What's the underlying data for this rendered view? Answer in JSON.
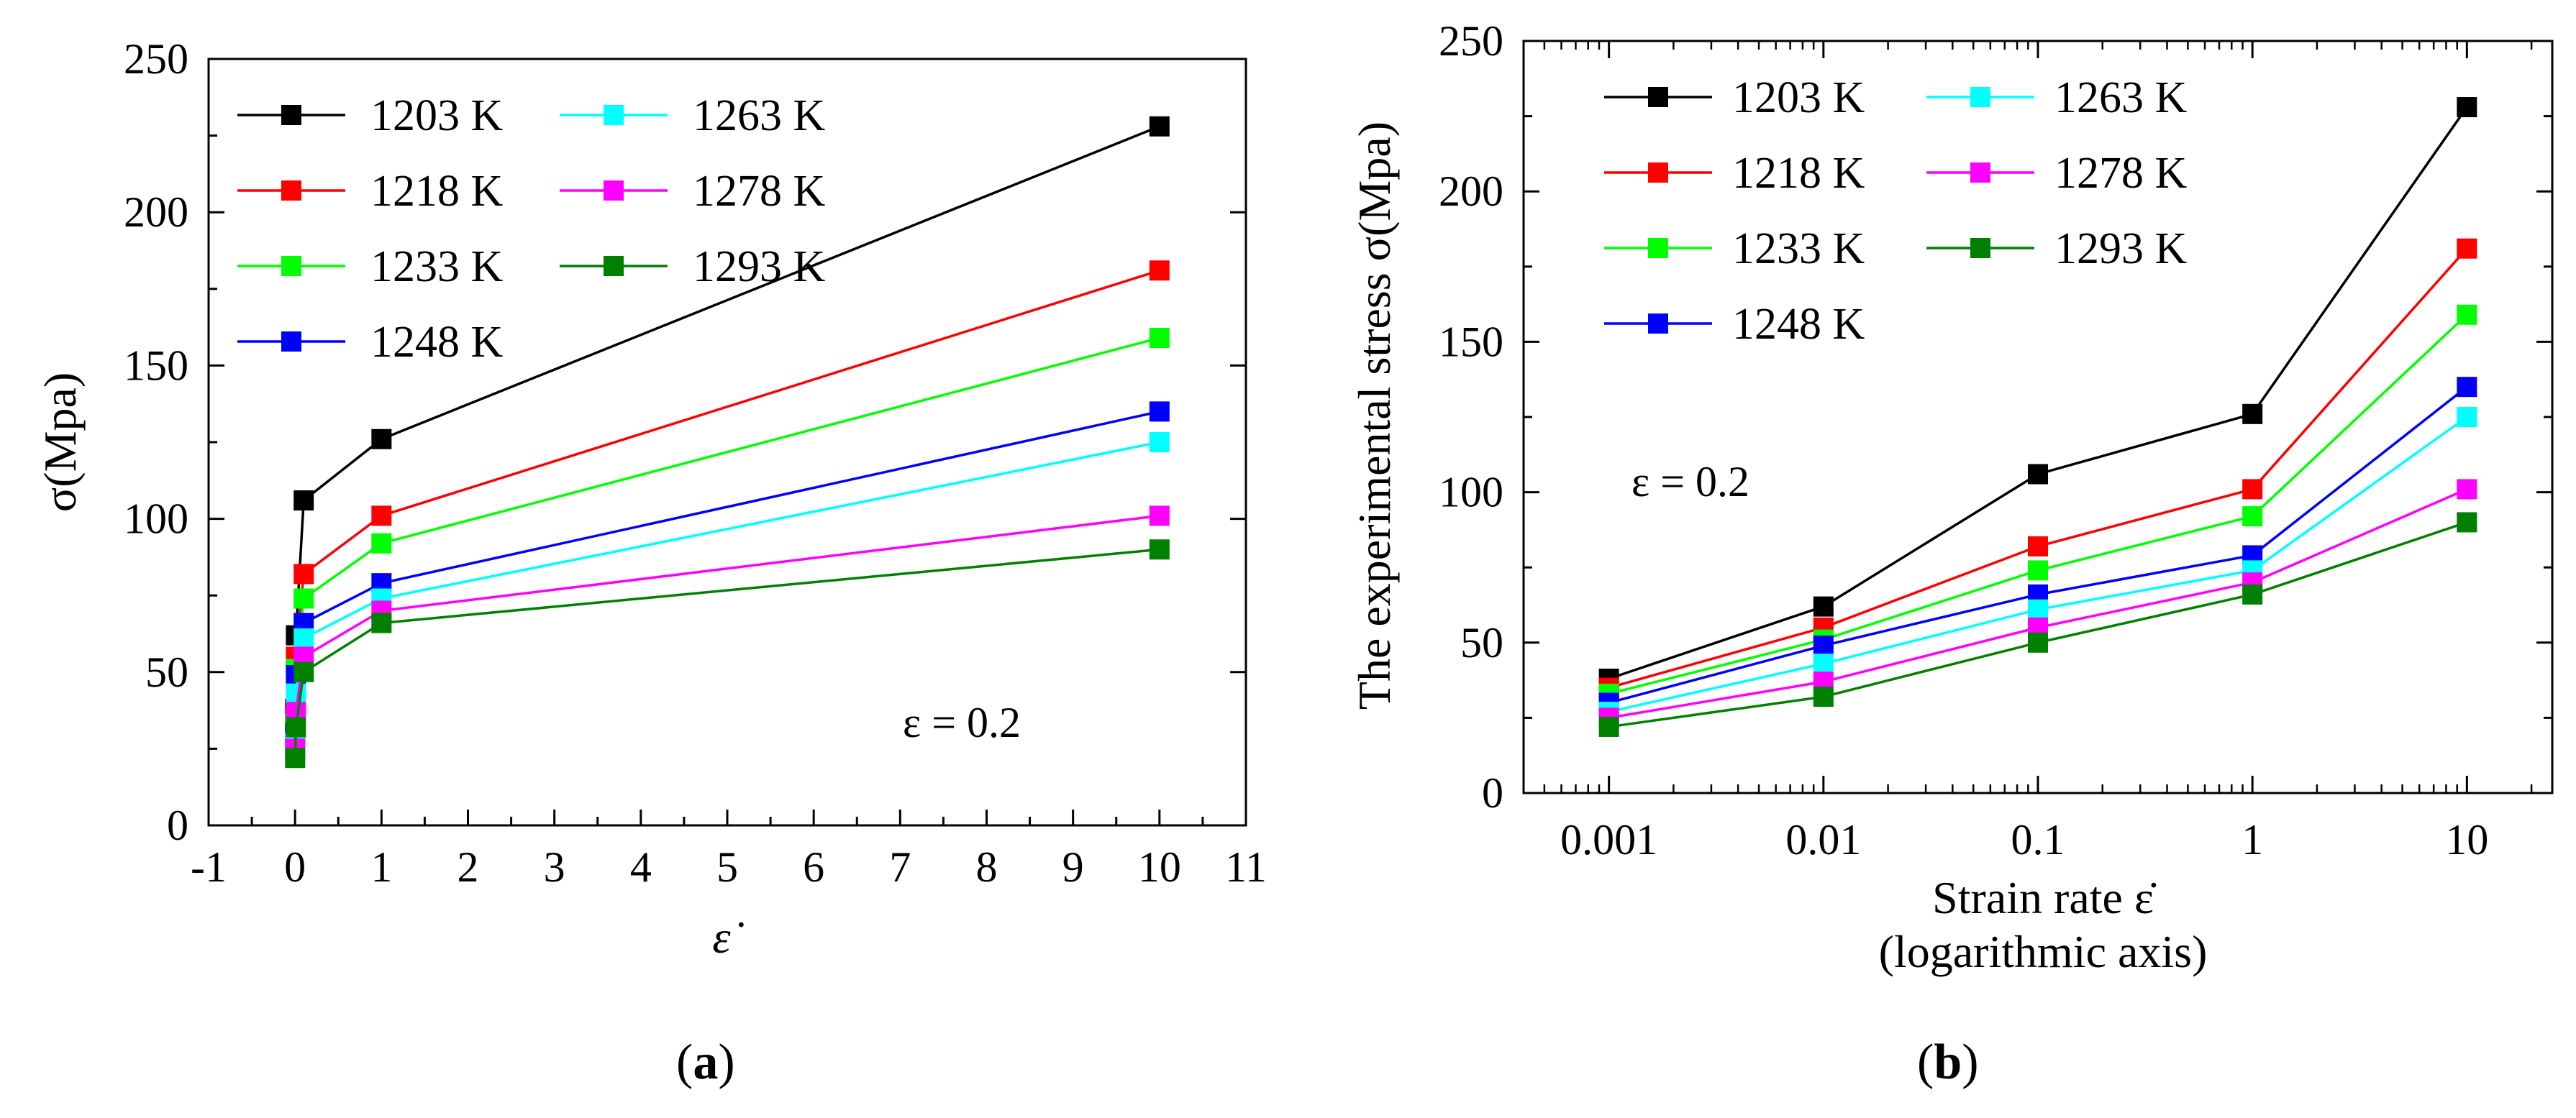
{
  "chart_data": [
    {
      "panel": "a",
      "type": "line",
      "caption": "a",
      "ylabel": "σ(Mpa)",
      "xlabel": "ε̇",
      "annotation": "ε = 0.2",
      "xlim": [
        -1,
        11
      ],
      "ylim": [
        0,
        250
      ],
      "xticks": [
        "-1",
        "0",
        "1",
        "2",
        "3",
        "4",
        "5",
        "6",
        "7",
        "8",
        "9",
        "10",
        "11"
      ],
      "yticks": [
        "0",
        "50",
        "100",
        "150",
        "200",
        "250"
      ],
      "x": [
        0.001,
        0.01,
        0.1,
        1,
        10
      ],
      "series": [
        {
          "name": "1203 K",
          "color": "#000000",
          "values": [
            38,
            62,
            106,
            126,
            228
          ]
        },
        {
          "name": "1218 K",
          "color": "#ff0000",
          "values": [
            35,
            55,
            82,
            101,
            181
          ]
        },
        {
          "name": "1233 K",
          "color": "#00ff00",
          "values": [
            33,
            51,
            74,
            92,
            159
          ]
        },
        {
          "name": "1248 K",
          "color": "#0000ff",
          "values": [
            30,
            49,
            66,
            79,
            135
          ]
        },
        {
          "name": "1263 K",
          "color": "#00ffff",
          "values": [
            27,
            43,
            61,
            74,
            125
          ]
        },
        {
          "name": "1278 K",
          "color": "#ff00ff",
          "values": [
            25,
            37,
            55,
            70,
            101
          ]
        },
        {
          "name": "1293 K",
          "color": "#008000",
          "values": [
            22,
            32,
            50,
            66,
            90
          ]
        }
      ]
    },
    {
      "panel": "b",
      "type": "line",
      "caption": "b",
      "ylabel": "The experimental stress σ(Mpa)",
      "xlabel_line1": "Strain rate ε̇",
      "xlabel_line2": "(logarithmic axis)",
      "annotation": "ε = 0.2",
      "xscale": "log",
      "xlim": [
        0.0004,
        25
      ],
      "ylim": [
        0,
        250
      ],
      "xticks": [
        "0.001",
        "0.01",
        "0.1",
        "1",
        "10"
      ],
      "yticks": [
        "0",
        "50",
        "100",
        "150",
        "200",
        "250"
      ],
      "x": [
        0.001,
        0.01,
        0.1,
        1,
        10
      ],
      "series": [
        {
          "name": "1203 K",
          "color": "#000000",
          "values": [
            38,
            62,
            106,
            126,
            228
          ]
        },
        {
          "name": "1218 K",
          "color": "#ff0000",
          "values": [
            35,
            55,
            82,
            101,
            181
          ]
        },
        {
          "name": "1233 K",
          "color": "#00ff00",
          "values": [
            33,
            51,
            74,
            92,
            159
          ]
        },
        {
          "name": "1248 K",
          "color": "#0000ff",
          "values": [
            30,
            49,
            66,
            79,
            135
          ]
        },
        {
          "name": "1263 K",
          "color": "#00ffff",
          "values": [
            27,
            43,
            61,
            74,
            125
          ]
        },
        {
          "name": "1278 K",
          "color": "#ff00ff",
          "values": [
            25,
            37,
            55,
            70,
            101
          ]
        },
        {
          "name": "1293 K",
          "color": "#008000",
          "values": [
            22,
            32,
            50,
            66,
            90
          ]
        }
      ]
    }
  ]
}
